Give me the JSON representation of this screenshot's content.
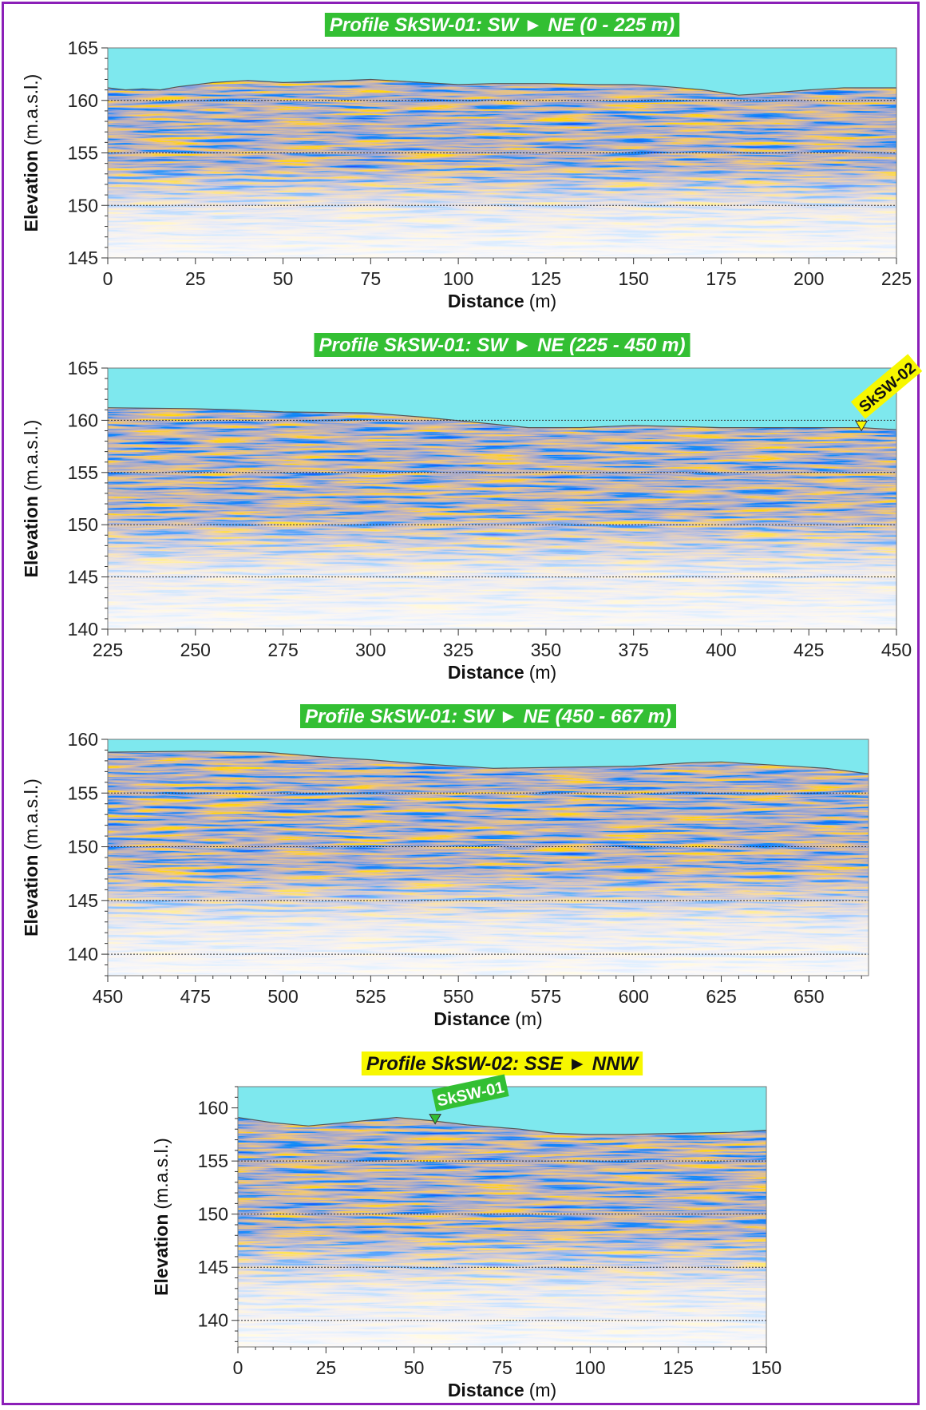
{
  "colors": {
    "frame": "#8b1fb8",
    "air": "#7ee8ee",
    "title_bg_green": "#33bf33",
    "title_bg_yellow": "#f7f700",
    "reflector_orange": "#d9541e",
    "reflector_blue": "#4a3f9a",
    "gridline": "#333333"
  },
  "ylabel_bold": "Elevation",
  "ylabel_unit": "(m.a.s.l.)",
  "xlabel_bold": "Distance",
  "xlabel_unit": "(m)",
  "chart_data": [
    {
      "type": "heatmap",
      "title": "Profile SkSW-01: SW ► NE (0 - 225 m)",
      "title_color": "green",
      "xlim": [
        0,
        225
      ],
      "ylim": [
        145,
        165
      ],
      "xticks": [
        0,
        25,
        50,
        75,
        100,
        125,
        150,
        175,
        200,
        225
      ],
      "yticks": [
        145,
        150,
        155,
        160,
        165
      ],
      "gridlines_y": [
        150,
        155,
        160
      ],
      "surface": [
        [
          0,
          161.2
        ],
        [
          5,
          161.0
        ],
        [
          10,
          161.1
        ],
        [
          15,
          161.0
        ],
        [
          20,
          161.3
        ],
        [
          30,
          161.7
        ],
        [
          40,
          161.9
        ],
        [
          50,
          161.7
        ],
        [
          60,
          161.8
        ],
        [
          75,
          162.0
        ],
        [
          90,
          161.7
        ],
        [
          100,
          161.5
        ],
        [
          110,
          161.6
        ],
        [
          125,
          161.6
        ],
        [
          140,
          161.5
        ],
        [
          150,
          161.5
        ],
        [
          160,
          161.3
        ],
        [
          170,
          161.0
        ],
        [
          180,
          160.5
        ],
        [
          185,
          160.6
        ],
        [
          200,
          161.0
        ],
        [
          210,
          161.2
        ],
        [
          225,
          161.2
        ]
      ],
      "markers": []
    },
    {
      "type": "heatmap",
      "title": "Profile SkSW-01: SW ► NE (225 - 450 m)",
      "title_color": "green",
      "xlim": [
        225,
        450
      ],
      "ylim": [
        140,
        165
      ],
      "xticks": [
        225,
        250,
        275,
        300,
        325,
        350,
        375,
        400,
        425,
        450
      ],
      "yticks": [
        140,
        145,
        150,
        155,
        160,
        165
      ],
      "gridlines_y": [
        145,
        150,
        155,
        160
      ],
      "surface": [
        [
          225,
          161.2
        ],
        [
          250,
          161.1
        ],
        [
          262,
          161.0
        ],
        [
          275,
          160.8
        ],
        [
          300,
          160.7
        ],
        [
          315,
          160.3
        ],
        [
          330,
          159.8
        ],
        [
          345,
          159.3
        ],
        [
          360,
          159.3
        ],
        [
          375,
          159.5
        ],
        [
          400,
          159.3
        ],
        [
          425,
          159.3
        ],
        [
          440,
          159.3
        ],
        [
          450,
          159.1
        ]
      ],
      "markers": [
        {
          "label": "SkSW-02",
          "x": 440,
          "y": 159.3,
          "color": "yellow"
        }
      ]
    },
    {
      "type": "heatmap",
      "title": "Profile SkSW-01: SW ► NE (450 - 667 m)",
      "title_color": "green",
      "xlim": [
        450,
        667
      ],
      "ylim": [
        138,
        160
      ],
      "xticks": [
        450,
        475,
        500,
        525,
        550,
        575,
        600,
        625,
        650
      ],
      "yticks": [
        140,
        145,
        150,
        155,
        160
      ],
      "gridlines_y": [
        140,
        145,
        150,
        155
      ],
      "surface": [
        [
          450,
          158.8
        ],
        [
          475,
          158.9
        ],
        [
          495,
          158.8
        ],
        [
          510,
          158.4
        ],
        [
          525,
          158.1
        ],
        [
          540,
          157.7
        ],
        [
          560,
          157.3
        ],
        [
          580,
          157.4
        ],
        [
          600,
          157.5
        ],
        [
          615,
          157.8
        ],
        [
          625,
          157.9
        ],
        [
          640,
          157.6
        ],
        [
          655,
          157.3
        ],
        [
          667,
          156.8
        ]
      ],
      "markers": []
    },
    {
      "type": "heatmap",
      "title": "Profile SkSW-02: SSE ► NNW",
      "title_color": "yellow",
      "xlim": [
        0,
        150
      ],
      "ylim": [
        137.5,
        162
      ],
      "xticks": [
        0,
        25,
        50,
        75,
        100,
        125,
        150
      ],
      "yticks": [
        140,
        145,
        150,
        155,
        160
      ],
      "gridlines_y": [
        140,
        145,
        150,
        155
      ],
      "surface": [
        [
          0,
          159.1
        ],
        [
          10,
          158.6
        ],
        [
          20,
          158.3
        ],
        [
          30,
          158.6
        ],
        [
          45,
          159.1
        ],
        [
          55,
          158.8
        ],
        [
          65,
          158.4
        ],
        [
          80,
          158.0
        ],
        [
          90,
          157.6
        ],
        [
          100,
          157.5
        ],
        [
          110,
          157.5
        ],
        [
          125,
          157.6
        ],
        [
          140,
          157.7
        ],
        [
          150,
          157.9
        ]
      ],
      "markers": [
        {
          "label": "SkSW-01",
          "x": 56,
          "y": 158.8,
          "color": "green"
        }
      ]
    }
  ]
}
